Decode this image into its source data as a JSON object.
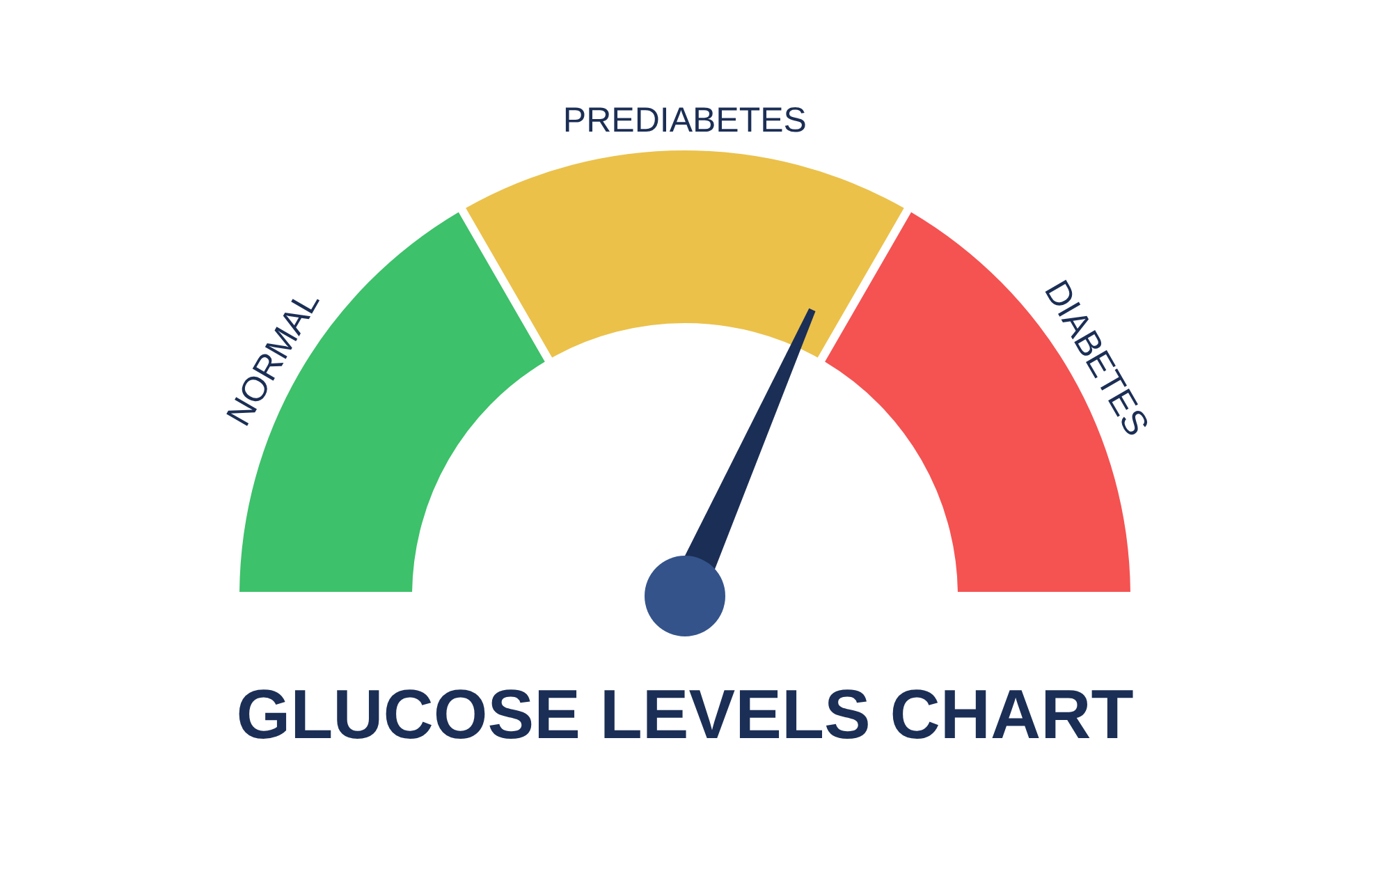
{
  "chart_data": {
    "type": "donut",
    "title": "GLUCOSE LEVELS CHART",
    "categories": [
      "NORMAL",
      "PREDIABETES",
      "DIABETES"
    ],
    "values": [
      33.33,
      33.33,
      33.34
    ],
    "colors": [
      "#3dc16a",
      "#ebc14a",
      "#f55252"
    ],
    "needle": "PREDIABETES"
  }
}
